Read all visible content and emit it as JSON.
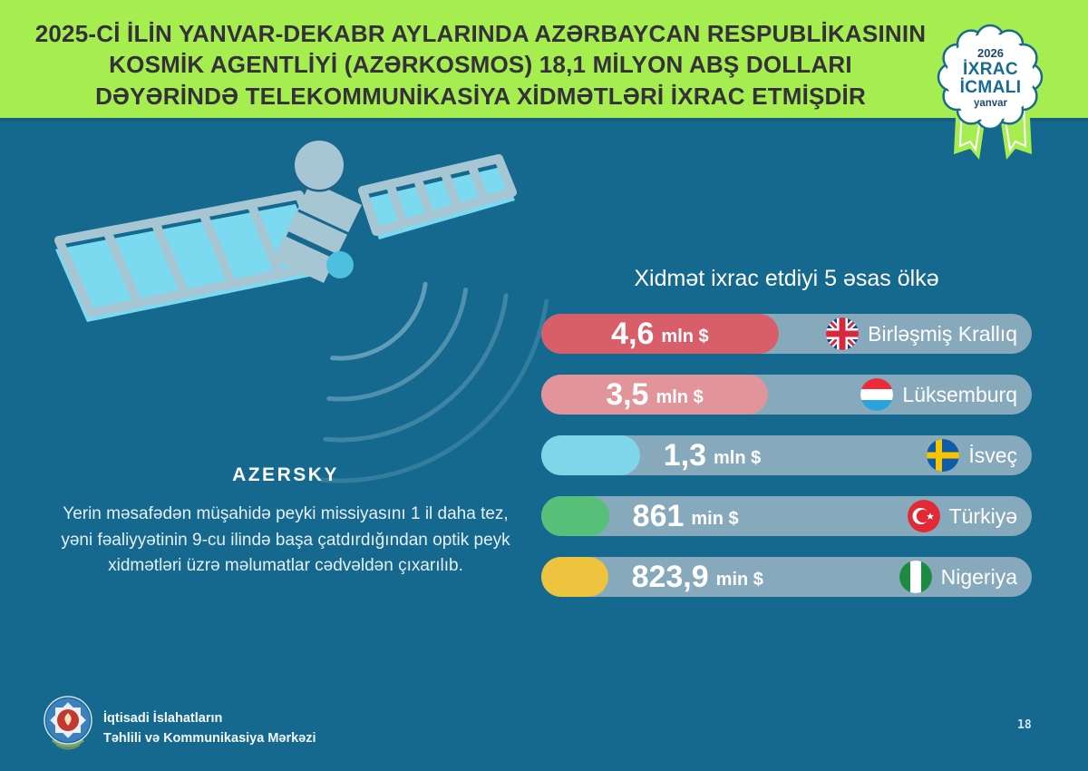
{
  "header": {
    "title_lines": [
      "2025-Cİ İLİN YANVAR-DEKABR AYLARINDA AZƏRBAYCAN RESPUBLİKASININ",
      "KOSMİK AGENTLİYİ (AZƏRKOSMOS) 18,1 MİLYON ABŞ DOLLARI",
      "DƏYƏRİNDƏ TELEKOMMUNİKASİYA XİDMƏTLƏRİ İXRAC ETMİŞDİR"
    ],
    "bg_color": "#a6ee4f",
    "text_color": "#35313b"
  },
  "badge": {
    "year": "2026",
    "title_line1": "İXRAC",
    "title_line2": "İCMALI",
    "month": "yanvar"
  },
  "satellite": {
    "name": "AZERSKY"
  },
  "note": "Yerin məsafədən müşahidə peyki missiyasını 1 il daha tez, yəni fəaliyyətinin 9-cu ilində başa çatdırdığından optik peyk xidmətləri üzrə məlumatlar cədvəldən çıxarılıb.",
  "chart": {
    "title": "Xidmət ixrac etdiyi 5 əsas ölkə",
    "track_color": "#86a9bc",
    "rows": [
      {
        "value": "4,6",
        "unit": "mln $",
        "country": "Birləşmiş Krallıq",
        "flag": "uk",
        "fill_color": "#d85f6a",
        "fill_pct": 48.4
      },
      {
        "value": "3,5",
        "unit": "mln $",
        "country": "Lüksemburq",
        "flag": "luxembourg",
        "fill_color": "#e2949b",
        "fill_pct": 46.2
      },
      {
        "value": "1,3",
        "unit": "mln $",
        "country": "İsveç",
        "flag": "sweden",
        "fill_color": "#7fd6e9",
        "fill_pct": 20.1
      },
      {
        "value": "861",
        "unit": "min $",
        "country": "Türkiyə",
        "flag": "turkey",
        "fill_color": "#57c078",
        "fill_pct": 13.8
      },
      {
        "value": "823,9",
        "unit": "min $",
        "country": "Nigeriya",
        "flag": "nigeria",
        "fill_color": "#eec33e",
        "fill_pct": 13.6
      }
    ]
  },
  "chart_data": {
    "type": "bar",
    "orientation": "horizontal",
    "title": "Xidmət ixrac etdiyi 5 əsas ölkə",
    "categories": [
      "Birləşmiş Krallıq",
      "Lüksemburq",
      "İsveç",
      "Türkiyə",
      "Nigeriya"
    ],
    "values_mln_usd": [
      4.6,
      3.5,
      1.3,
      0.861,
      0.8239
    ],
    "value_labels": [
      "4,6 mln $",
      "3,5 mln $",
      "1,3 mln $",
      "861 min $",
      "823,9 min $"
    ],
    "bar_colors": [
      "#d85f6a",
      "#e2949b",
      "#7fd6e9",
      "#57c078",
      "#eec33e"
    ],
    "legend": "none",
    "grid": false
  },
  "footer": {
    "org_line1": "İqtisadi İslahatların",
    "org_line2": "Təhlili və Kommunikasiya Mərkəzi",
    "page_number": "18"
  }
}
